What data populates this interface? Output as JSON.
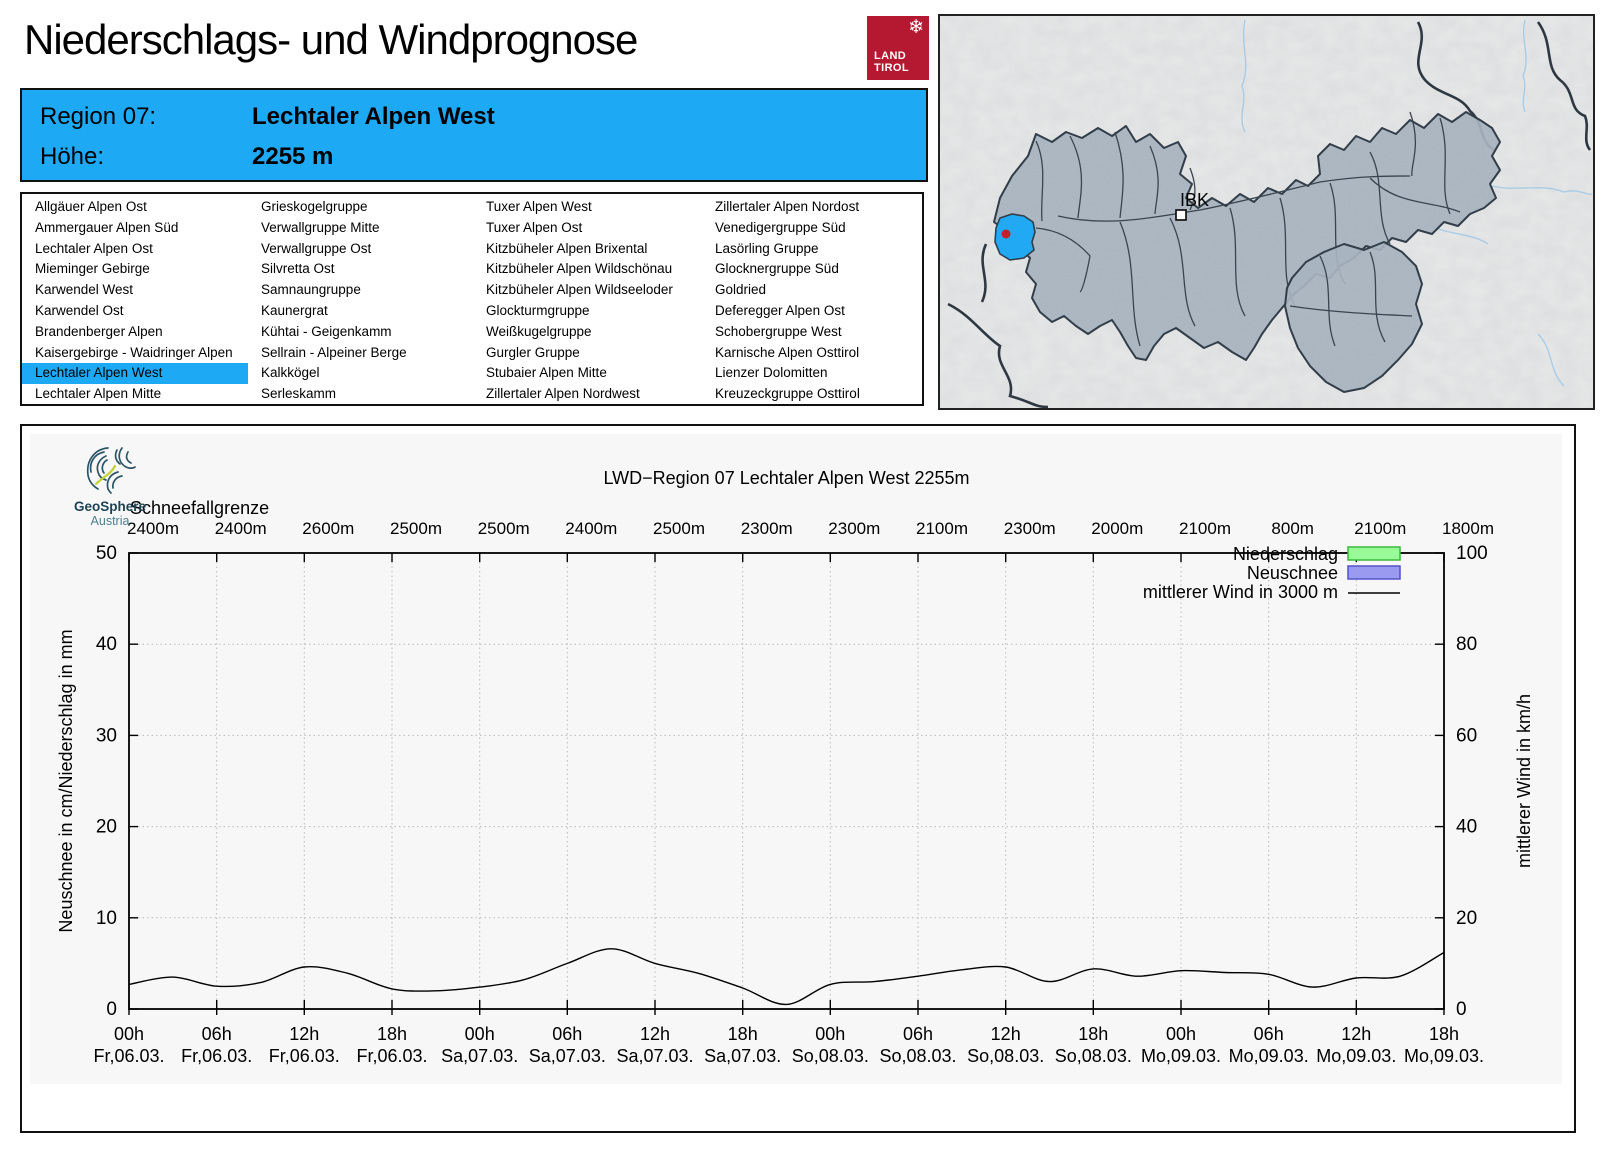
{
  "title": "Niederschlags- und Windprognose",
  "brand": {
    "land_line1": "LAND",
    "land_line2": "TIROL",
    "geosphere_name": "GeoSphere",
    "geosphere_country": "Austria"
  },
  "region_info": {
    "region_label": "Region 07:",
    "region_name": "Lechtaler Alpen West",
    "altitude_label": "Höhe:",
    "altitude_value": "2255 m"
  },
  "region_list": {
    "selected": "Lechtaler Alpen West",
    "columns": [
      [
        "Allgäuer Alpen Ost",
        "Ammergauer Alpen Süd",
        "Lechtaler Alpen Ost",
        "Mieminger Gebirge",
        "Karwendel West",
        "Karwendel Ost",
        "Brandenberger Alpen",
        "Kaisergebirge - Waidringer Alpen",
        "Lechtaler Alpen West",
        "Lechtaler Alpen Mitte"
      ],
      [
        "Grieskogelgruppe",
        "Verwallgruppe Mitte",
        "Verwallgruppe Ost",
        "Silvretta Ost",
        "Samnaungruppe",
        "Kaunergrat",
        "Kühtai - Geigenkamm",
        "Sellrain - Alpeiner Berge",
        "Kalkkögel",
        "Serleskamm"
      ],
      [
        "Tuxer Alpen West",
        "Tuxer Alpen Ost",
        "Kitzbüheler Alpen Brixental",
        "Kitzbüheler Alpen Wildschönau",
        "Kitzbüheler Alpen Wildseeloder",
        "Glockturmgruppe",
        "Weißkugelgruppe",
        "Gurgler Gruppe",
        "Stubaier Alpen Mitte",
        "Zillertaler Alpen Nordwest"
      ],
      [
        "Zillertaler Alpen Nordost",
        "Venedigergruppe Süd",
        "Lasörling Gruppe",
        "Glocknergruppe Süd",
        "Goldried",
        "Deferegger Alpen Ost",
        "Schobergruppe West",
        "Karnische Alpen Osttirol",
        "Lienzer Dolomitten",
        "Kreuzeckgruppe Osttirol"
      ]
    ]
  },
  "map": {
    "city_label": "IBK"
  },
  "colors": {
    "accent_blue": "#1ea9f5",
    "tirol_red": "#b41931",
    "map_region_fill": "#a7b3bf",
    "map_boundary": "#333e49"
  },
  "chart_data": {
    "type": "line",
    "title": "LWD−Region 07 Lechtaler Alpen West 2255m",
    "snowline": {
      "label": "Schneefallgrenze",
      "unit": "m",
      "labels": [
        "2400m",
        "2400m",
        "2600m",
        "2500m",
        "2500m",
        "2400m",
        "2500m",
        "2300m",
        "2300m",
        "2100m",
        "2300m",
        "2000m",
        "2100m",
        "800m",
        "2100m",
        "1800m"
      ]
    },
    "x_ticks": [
      {
        "time": "00h",
        "date": "Fr,06.03."
      },
      {
        "time": "06h",
        "date": "Fr,06.03."
      },
      {
        "time": "12h",
        "date": "Fr,06.03."
      },
      {
        "time": "18h",
        "date": "Fr,06.03."
      },
      {
        "time": "00h",
        "date": "Sa,07.03."
      },
      {
        "time": "06h",
        "date": "Sa,07.03."
      },
      {
        "time": "12h",
        "date": "Sa,07.03."
      },
      {
        "time": "18h",
        "date": "Sa,07.03."
      },
      {
        "time": "00h",
        "date": "So,08.03."
      },
      {
        "time": "06h",
        "date": "So,08.03."
      },
      {
        "time": "12h",
        "date": "So,08.03."
      },
      {
        "time": "18h",
        "date": "So,08.03."
      },
      {
        "time": "00h",
        "date": "Mo,09.03."
      },
      {
        "time": "06h",
        "date": "Mo,09.03."
      },
      {
        "time": "12h",
        "date": "Mo,09.03."
      },
      {
        "time": "18h",
        "date": "Mo,09.03."
      }
    ],
    "axes": {
      "left_label": "Neuschnee in cm/Niederschlag in mm",
      "right_label": "mittlerer Wind in km/h",
      "left_ticks": [
        0,
        10,
        20,
        30,
        40,
        50
      ],
      "right_ticks": [
        0,
        20,
        40,
        60,
        80,
        100
      ],
      "left_range": [
        0,
        50
      ],
      "right_range": [
        0,
        100
      ],
      "grid": true
    },
    "legend": [
      {
        "label": "Niederschlag",
        "swatch": "box",
        "fill": "#98fb98",
        "border": "#3cb83c"
      },
      {
        "label": "Neuschnee",
        "swatch": "box",
        "fill": "#9a9af0",
        "border": "#5353c8"
      },
      {
        "label": "mittlerer Wind in 3000 m",
        "swatch": "line",
        "color": "#000000"
      }
    ],
    "series": [
      {
        "name": "Niederschlag",
        "unit": "mm",
        "axis": "left",
        "style": "bar",
        "step_hours": 3,
        "values": [
          0,
          0,
          0,
          0,
          0,
          0,
          0,
          0,
          0,
          0,
          0,
          0,
          0,
          0,
          0,
          0,
          0,
          0,
          0,
          0,
          0,
          0,
          0,
          0,
          0,
          0,
          0,
          0,
          0,
          0,
          0
        ]
      },
      {
        "name": "Neuschnee",
        "unit": "cm",
        "axis": "left",
        "style": "bar",
        "step_hours": 3,
        "values": [
          0,
          0,
          0,
          0,
          0,
          0,
          0,
          0,
          0,
          0,
          0,
          0,
          0,
          0,
          0,
          0,
          0,
          0,
          0,
          0,
          0,
          0,
          0,
          0,
          0,
          0,
          0,
          0,
          0,
          0,
          0
        ]
      },
      {
        "name": "mittlerer Wind in 3000 m",
        "unit": "km/h",
        "axis": "right",
        "style": "line",
        "step_hours": 3,
        "values": [
          5.4,
          7.0,
          5.0,
          5.8,
          9.2,
          7.8,
          4.4,
          4.0,
          4.8,
          6.4,
          10.0,
          13.2,
          10.0,
          7.8,
          4.6,
          1.0,
          5.4,
          6.0,
          7.2,
          8.6,
          9.2,
          6.0,
          8.8,
          7.2,
          8.4,
          8.0,
          7.6,
          4.8,
          6.8,
          7.2,
          12.4
        ]
      }
    ]
  }
}
